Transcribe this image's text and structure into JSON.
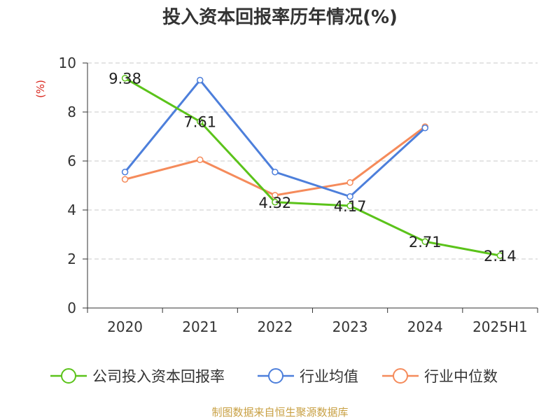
{
  "title": "投入资本回报率历年情况(%)",
  "source": "制图数据来自恒生聚源数据库",
  "colors": {
    "company": "#5bc31a",
    "industry_avg": "#4d7fdb",
    "industry_median": "#f58b5b",
    "grid": "#c8c8c8",
    "axis": "#333333",
    "ylabel": "#d9261c",
    "source": "#c8a043"
  },
  "chart_data": {
    "type": "line",
    "title": "投入资本回报率历年情况(%)",
    "ylabel": "(%)",
    "xlabel": "",
    "ylim": [
      0,
      10
    ],
    "yticks": [
      0,
      2,
      4,
      6,
      8,
      10
    ],
    "grid": true,
    "legend": "bottom",
    "categories": [
      "2020",
      "2021",
      "2022",
      "2023",
      "2024",
      "2025H1"
    ],
    "series": [
      {
        "name": "公司投入资本回报率",
        "color": "#5bc31a",
        "values": [
          9.38,
          7.61,
          4.32,
          4.17,
          2.71,
          2.14
        ],
        "labels": [
          "9.38",
          "7.61",
          "4.32",
          "4.17",
          "2.71",
          "2.14"
        ]
      },
      {
        "name": "行业均值",
        "color": "#4d7fdb",
        "values": [
          5.55,
          9.3,
          5.55,
          4.55,
          7.35,
          null
        ]
      },
      {
        "name": "行业中位数",
        "color": "#f58b5b",
        "values": [
          5.25,
          6.05,
          4.6,
          5.12,
          7.4,
          null
        ]
      }
    ]
  }
}
